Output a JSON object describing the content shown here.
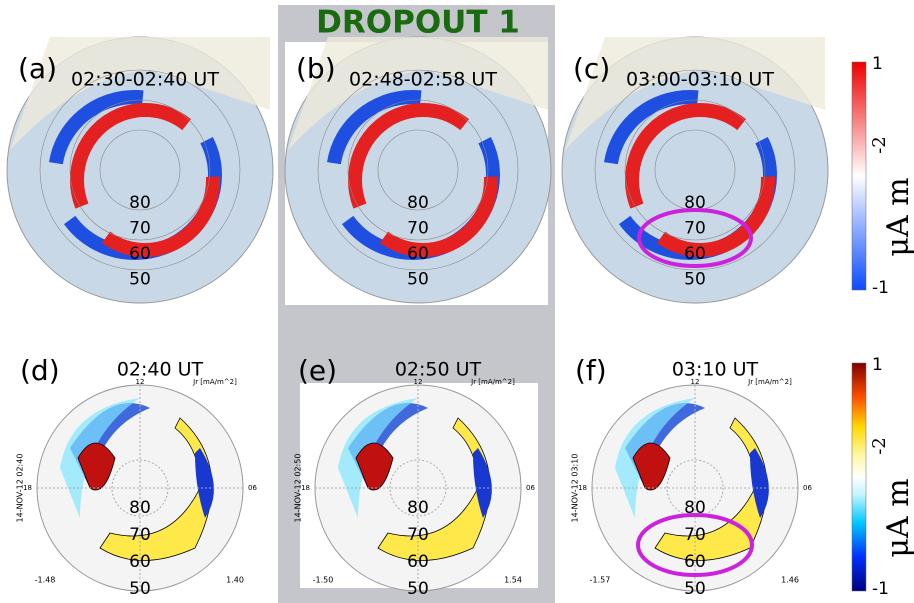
{
  "header": {
    "title": "DROPOUT 1"
  },
  "top_panels": [
    {
      "label": "(a)",
      "time": "02:30-02:40 UT",
      "latitudes": [
        "80",
        "70",
        "60",
        "50"
      ]
    },
    {
      "label": "(b)",
      "time": "02:48-02:58 UT",
      "latitudes": [
        "80",
        "70",
        "60",
        "50"
      ]
    },
    {
      "label": "(c)",
      "time": "03:00-03:10 UT",
      "latitudes": [
        "80",
        "70",
        "60",
        "50"
      ]
    }
  ],
  "bottom_panels": [
    {
      "label": "(d)",
      "time": "02:40 UT",
      "latitudes": [
        "80",
        "70",
        "60",
        "50"
      ],
      "date": "14-NOV-12 02:40",
      "min": "-1.48",
      "max": "1.40",
      "noon": "12",
      "dusk": "18",
      "dawn": "06",
      "units": "Jr [mA/m^2]"
    },
    {
      "label": "(e)",
      "time": "02:50 UT",
      "latitudes": [
        "80",
        "70",
        "60",
        "50"
      ],
      "date": "14-NOV-12 02:50",
      "min": "-1.50",
      "max": "1.54",
      "noon": "12",
      "dusk": "18",
      "dawn": "06",
      "units": "Jr [mA/m^2]"
    },
    {
      "label": "(f)",
      "time": "03:10 UT",
      "latitudes": [
        "80",
        "70",
        "60",
        "50"
      ],
      "date": "14-NOV-12 03:10",
      "min": "-1.57",
      "max": "1.46",
      "noon": "12",
      "dusk": "18",
      "dawn": "06",
      "units": "Jr [mA/m^2]"
    }
  ],
  "colorbars": [
    {
      "max": "1",
      "min": "-1",
      "unit": "μA m",
      "exponent": "-2"
    },
    {
      "max": "1",
      "min": "-1",
      "unit": "μA m",
      "exponent": "-2"
    }
  ]
}
